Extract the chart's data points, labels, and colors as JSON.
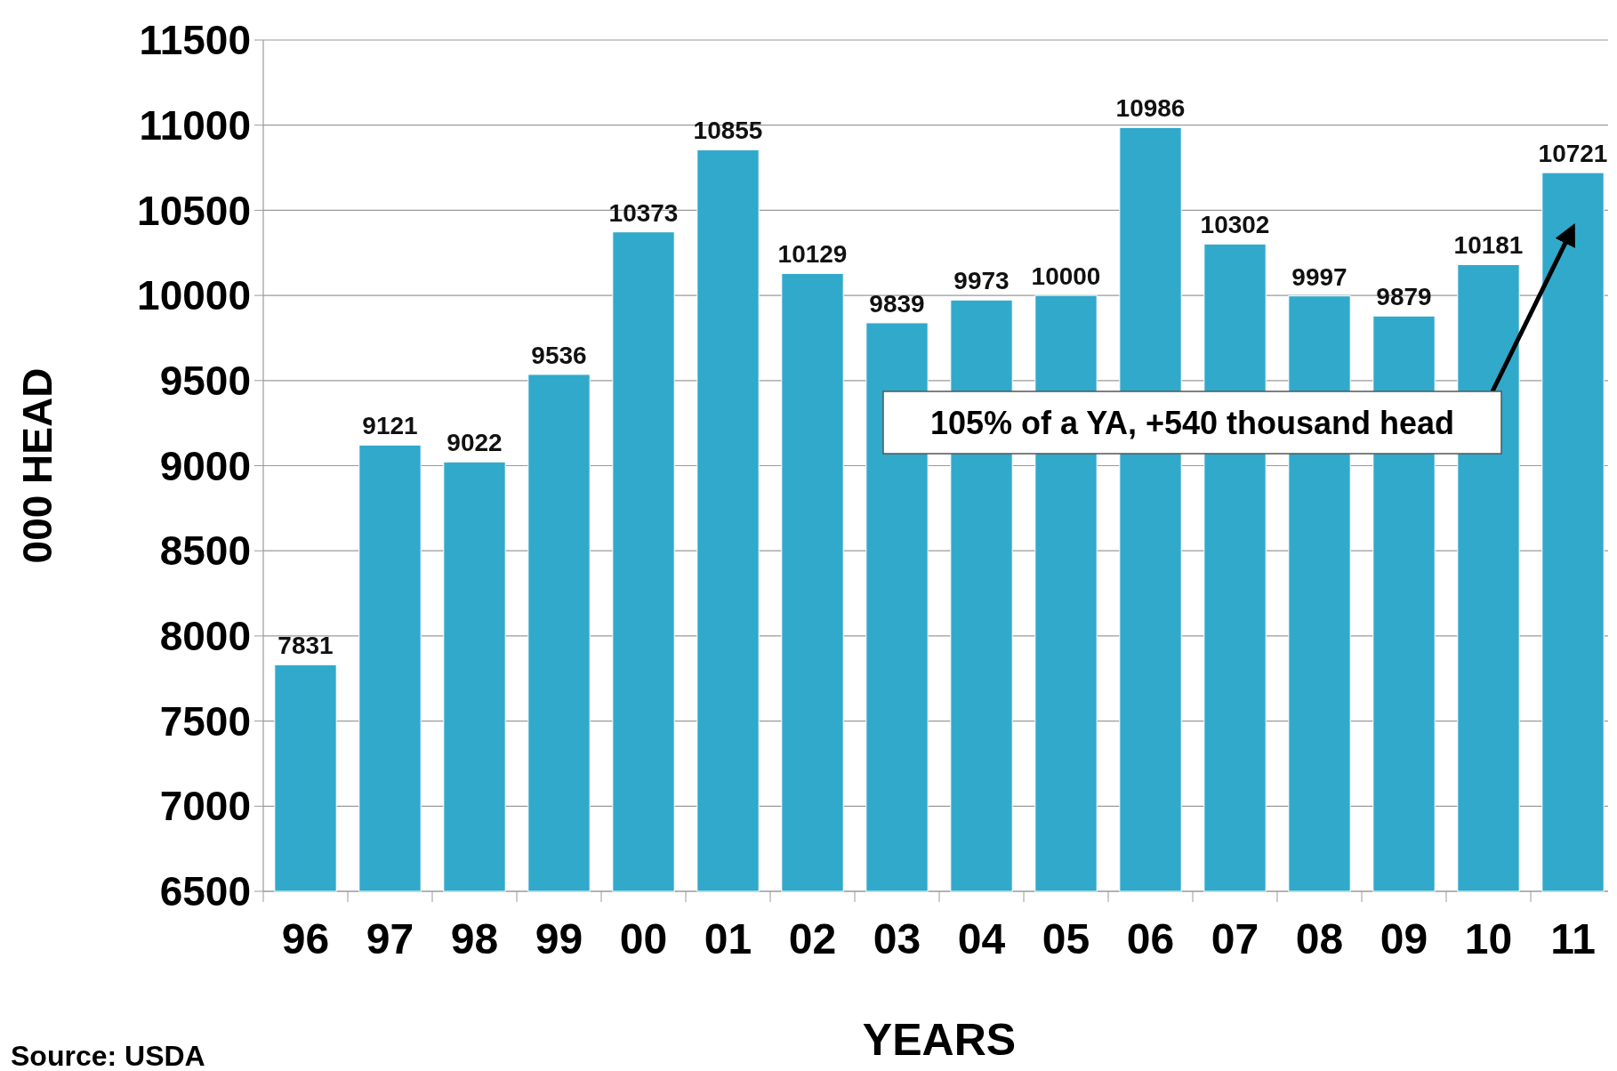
{
  "chart_data": {
    "type": "bar",
    "xlabel": "YEARS",
    "ylabel": "000 HEAD",
    "categories": [
      "96",
      "97",
      "98",
      "99",
      "00",
      "01",
      "02",
      "03",
      "04",
      "05",
      "06",
      "07",
      "08",
      "09",
      "10",
      "11"
    ],
    "values": [
      7831,
      9121,
      9022,
      9536,
      10373,
      10855,
      10129,
      9839,
      9973,
      10000,
      10986,
      10302,
      9997,
      9879,
      10181,
      10721
    ],
    "color": "#31a9cb",
    "ylim": [
      6500,
      11500
    ],
    "yticks": [
      6500,
      7000,
      7500,
      8000,
      8500,
      9000,
      9500,
      10000,
      10500,
      11000,
      11500
    ],
    "grid": "y",
    "data_labels": true,
    "annotations": [
      "105% of a YA, +540 thousand head",
      "Source: USDA"
    ]
  }
}
